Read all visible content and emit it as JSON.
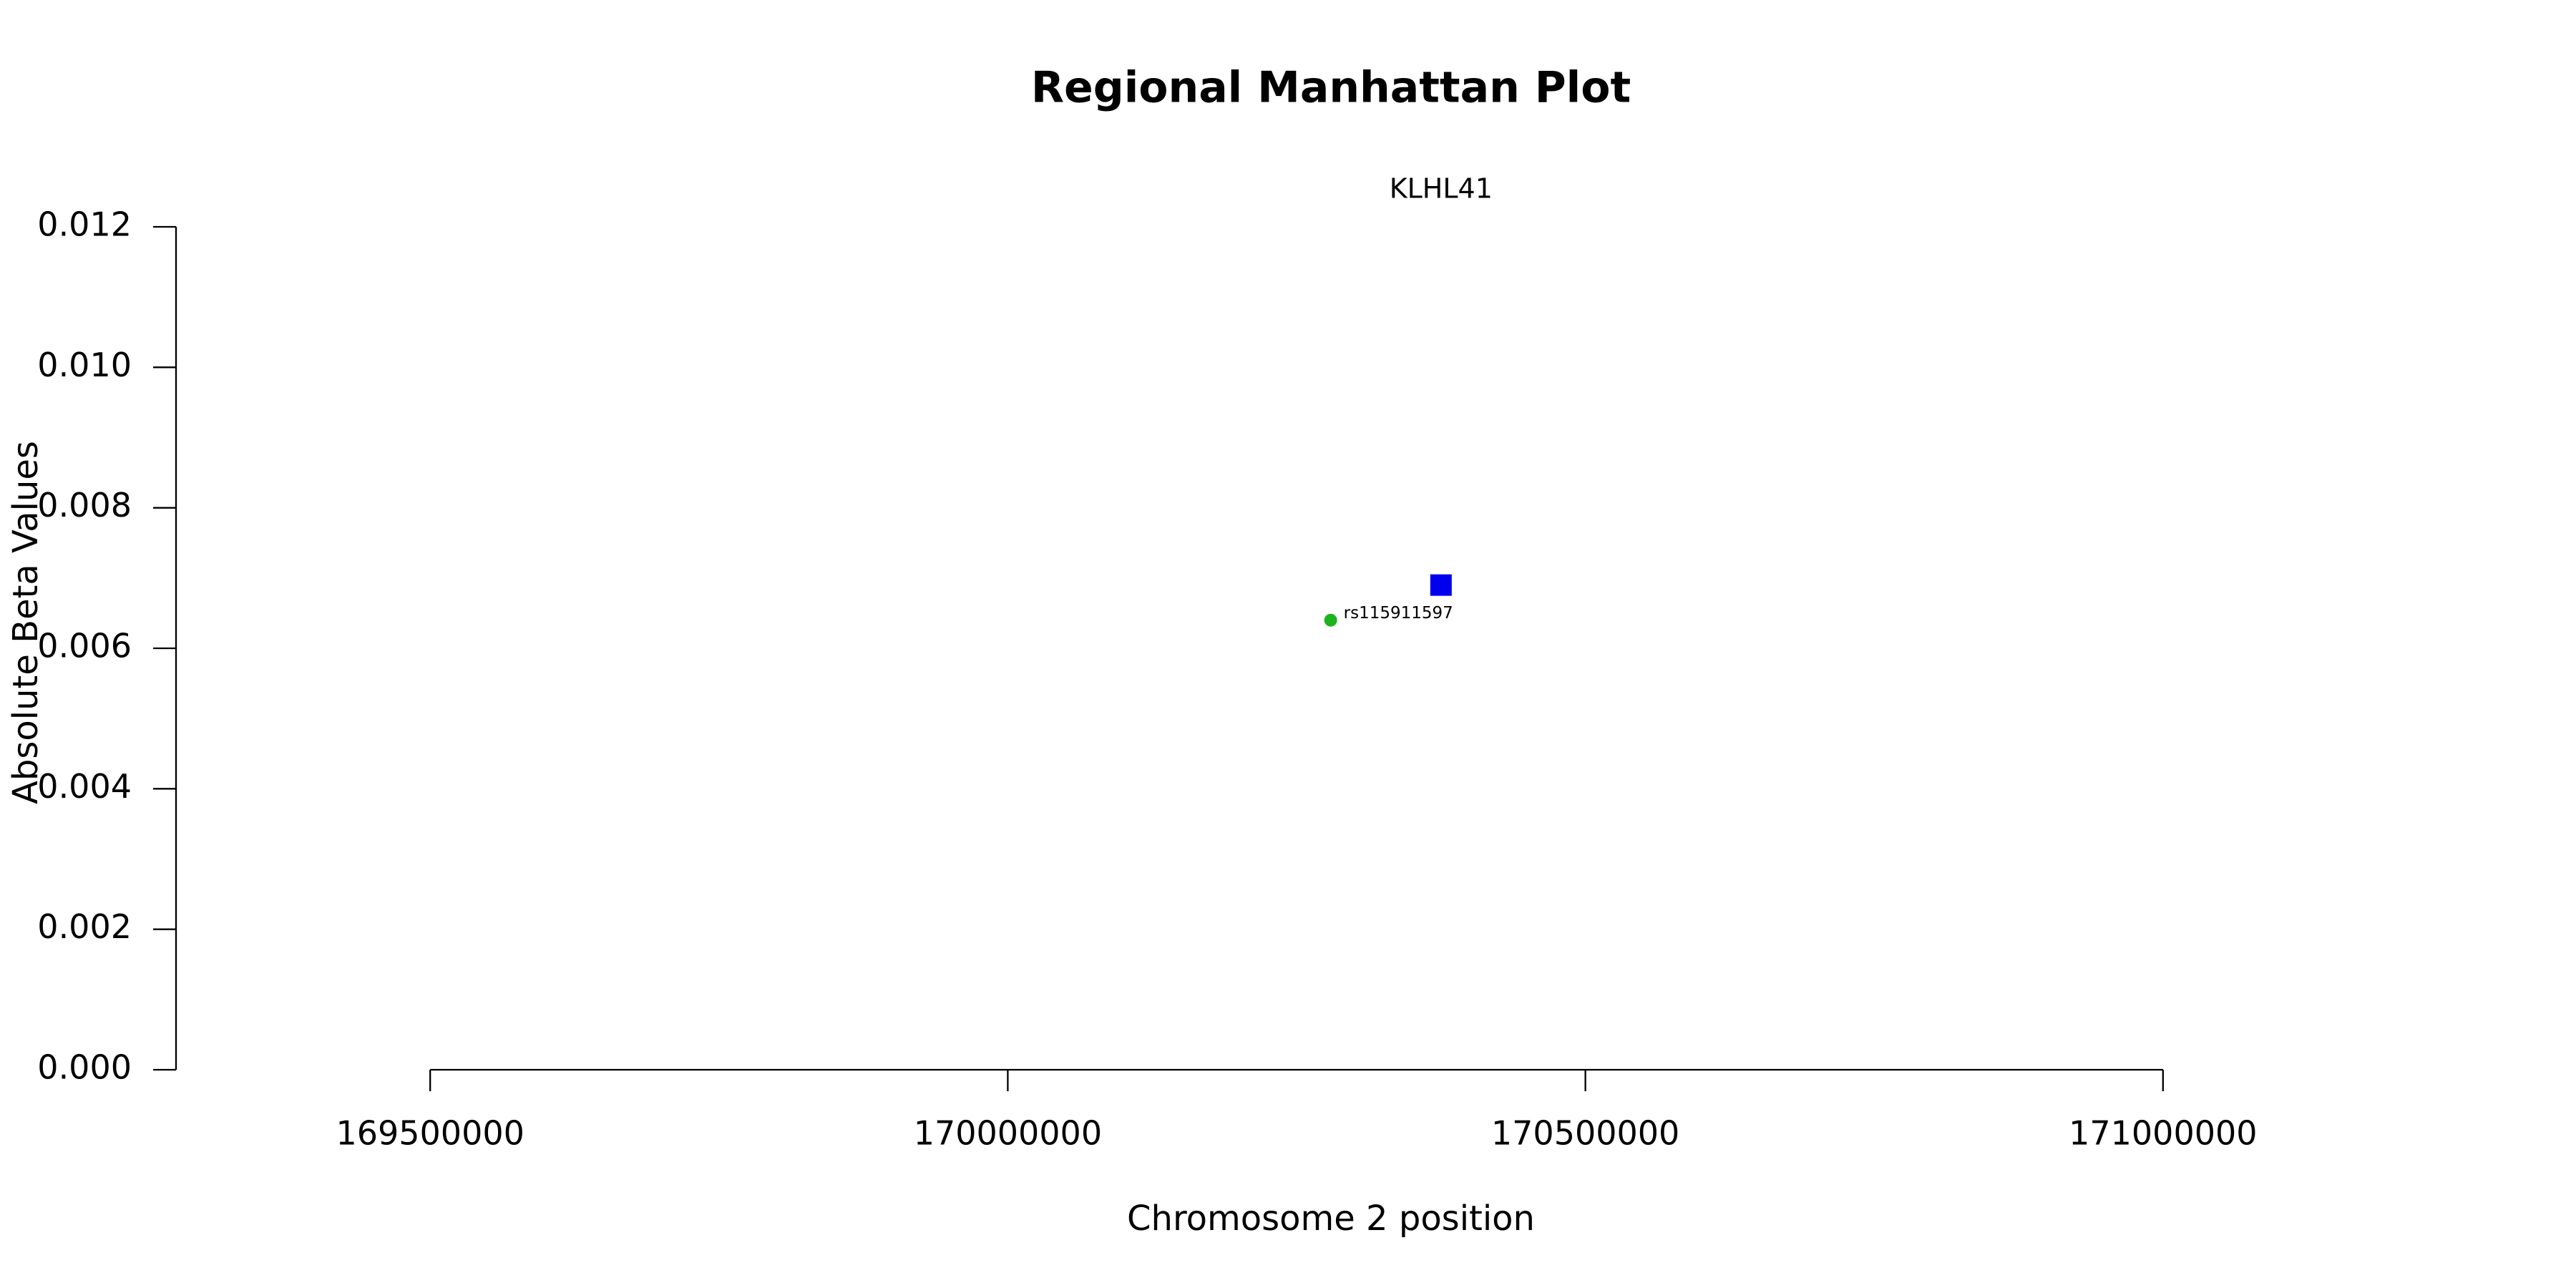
{
  "chart_data": {
    "type": "scatter",
    "title": "Regional Manhattan Plot",
    "x_label": "Chromosome 2 position",
    "y_label": "Absolute Beta Values",
    "annotations": [
      "KLHL41"
    ],
    "series": [
      {
        "color": "#1db31d",
        "marker": "circle",
        "x": [
          170279500
        ],
        "values": [
          0.0064
        ],
        "point_labels": [
          "rs115911597"
        ]
      },
      {
        "color": "#0000ee",
        "marker": "square",
        "x": [
          170375000
        ],
        "values": [
          0.0069
        ]
      }
    ],
    "xlim": [
      169280000,
      171220000
    ],
    "xticks": [
      169500000,
      170000000,
      170500000,
      171000000
    ],
    "ylim": [
      0,
      0.012
    ],
    "yticks": [
      {
        "value": 0,
        "label": "0.000"
      },
      0.002,
      0.004,
      0.006,
      0.008,
      {
        "value": 0.01,
        "label": "0.010"
      },
      0.012
    ],
    "grid": false
  }
}
